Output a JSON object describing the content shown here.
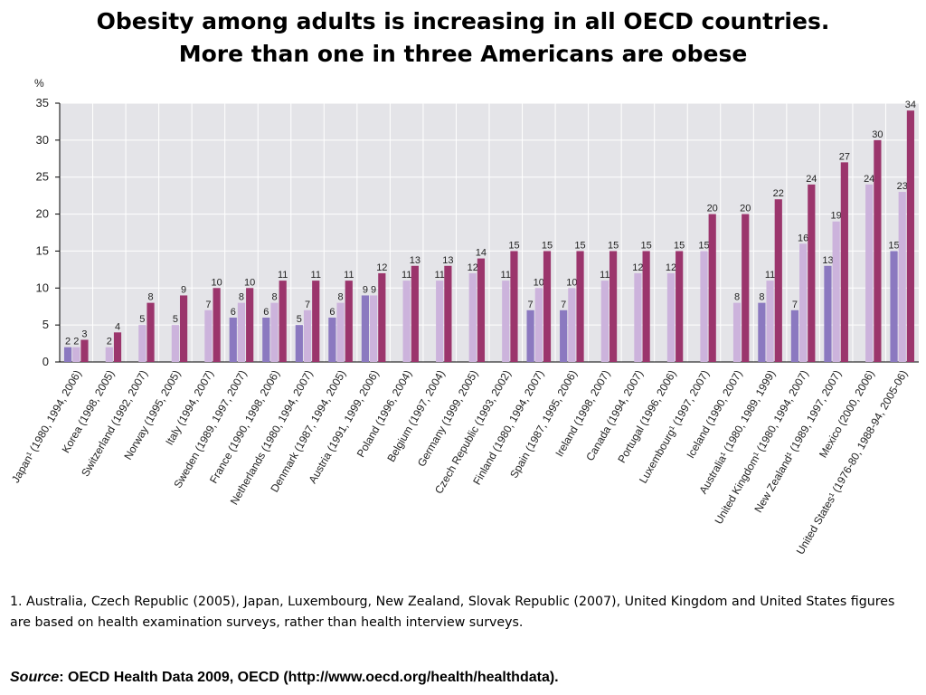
{
  "title_line1": "Obesity among adults is increasing in all OECD countries.",
  "title_line2": "More than one in three Americans are obese",
  "footnote": "1. Australia, Czech Republic (2005), Japan, Luxembourg, New Zealand, Slovak Republic (2007), United Kingdom and United States figures are based on health examination surveys, rather than health interview surveys.",
  "source_label": "Source",
  "source_text": ": OECD Health Data 2009, OECD (http://www.oecd.org/health/healthdata).",
  "colors": {
    "first": "#8b79c0",
    "second": "#ccb3dc",
    "third": "#9b356c",
    "plot_bg": "#e4e4e8",
    "grid": "#ffffff"
  },
  "chart_data": {
    "type": "bar",
    "ylabel": "%",
    "ylim": [
      0,
      35
    ],
    "yticks": [
      0,
      5,
      10,
      15,
      20,
      25,
      30,
      35
    ],
    "grid": true,
    "categories": [
      "Japan¹ (1980, 1994, 2006)",
      "Korea (1998, 2005)",
      "Switzerland (1992, 2007)",
      "Norway (1995, 2005)",
      "Italy (1994, 2007)",
      "Sweden (1989, 1997, 2007)",
      "France (1990, 1998, 2006)",
      "Netherlands (1980, 1994, 2007)",
      "Denmark (1987, 1994, 2005)",
      "Austria (1991, 1999, 2006)",
      "Poland (1996, 2004)",
      "Belgium (1997, 2004)",
      "Germany (1999, 2005)",
      "Czech Republic (1993, 2002)",
      "Finland (1980, 1994, 2007)",
      "Spain (1987, 1995, 2006)",
      "Ireland (1998, 2007)",
      "Canada (1994, 2007)",
      "Portugal (1996, 2006)",
      "Luxembourg¹ (1997, 2007)",
      "Iceland (1990, 2007)",
      "Australia¹ (1980, 1989, 1999)",
      "United Kingdom¹ (1980, 1994, 2007)",
      "New Zealand¹ (1989, 1997, 2007)",
      "Mexico (2000, 2006)",
      "United States¹ (1976-80, 1988-94, 2005-06)"
    ],
    "series": [
      {
        "values": [
          2,
          null,
          null,
          null,
          null,
          6,
          6,
          5,
          6,
          9,
          null,
          null,
          null,
          null,
          7,
          7,
          null,
          null,
          null,
          null,
          null,
          8,
          7,
          13,
          null,
          15
        ]
      },
      {
        "values": [
          2,
          2,
          5,
          5,
          7,
          8,
          8,
          7,
          8,
          9,
          11,
          11,
          12,
          11,
          10,
          10,
          11,
          12,
          12,
          15,
          8,
          11,
          16,
          19,
          24,
          23
        ]
      },
      {
        "values": [
          3,
          4,
          8,
          9,
          10,
          10,
          11,
          11,
          11,
          12,
          13,
          13,
          14,
          15,
          15,
          15,
          15,
          15,
          15,
          20,
          20,
          22,
          24,
          27,
          30,
          34
        ]
      }
    ]
  }
}
